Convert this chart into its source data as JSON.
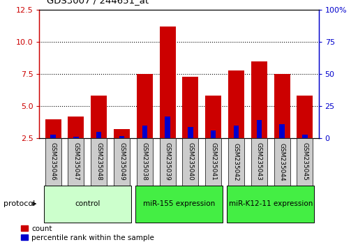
{
  "title": "GDS3007 / 244651_at",
  "samples": [
    "GSM235046",
    "GSM235047",
    "GSM235048",
    "GSM235049",
    "GSM235038",
    "GSM235039",
    "GSM235040",
    "GSM235041",
    "GSM235042",
    "GSM235043",
    "GSM235044",
    "GSM235045"
  ],
  "red_values": [
    4.0,
    4.2,
    5.8,
    3.2,
    7.5,
    11.2,
    7.3,
    5.8,
    7.8,
    8.5,
    7.5,
    5.8
  ],
  "blue_values": [
    2.8,
    2.6,
    3.0,
    2.7,
    3.5,
    4.2,
    3.4,
    3.1,
    3.5,
    3.9,
    3.6,
    2.8
  ],
  "ylim_left": [
    2.5,
    12.5
  ],
  "ylim_right": [
    0,
    100
  ],
  "yticks_left": [
    2.5,
    5.0,
    7.5,
    10.0,
    12.5
  ],
  "yticks_right": [
    0,
    25,
    50,
    75,
    100
  ],
  "ytick_labels_right": [
    "0",
    "25",
    "50",
    "75",
    "100%"
  ],
  "red_color": "#cc0000",
  "blue_color": "#0000cc",
  "bar_width": 0.7,
  "group_boundaries": [
    {
      "start": 0,
      "end": 3,
      "label": "control",
      "color": "#ccffcc"
    },
    {
      "start": 4,
      "end": 7,
      "label": "miR-155 expression",
      "color": "#44ee44"
    },
    {
      "start": 8,
      "end": 11,
      "label": "miR-K12-11 expression",
      "color": "#44ee44"
    }
  ],
  "legend_count": "count",
  "legend_percentile": "percentile rank within the sample",
  "protocol_label": "protocol",
  "sample_box_color": "#cccccc",
  "grid_dotted_values": [
    5.0,
    7.5,
    10.0
  ]
}
